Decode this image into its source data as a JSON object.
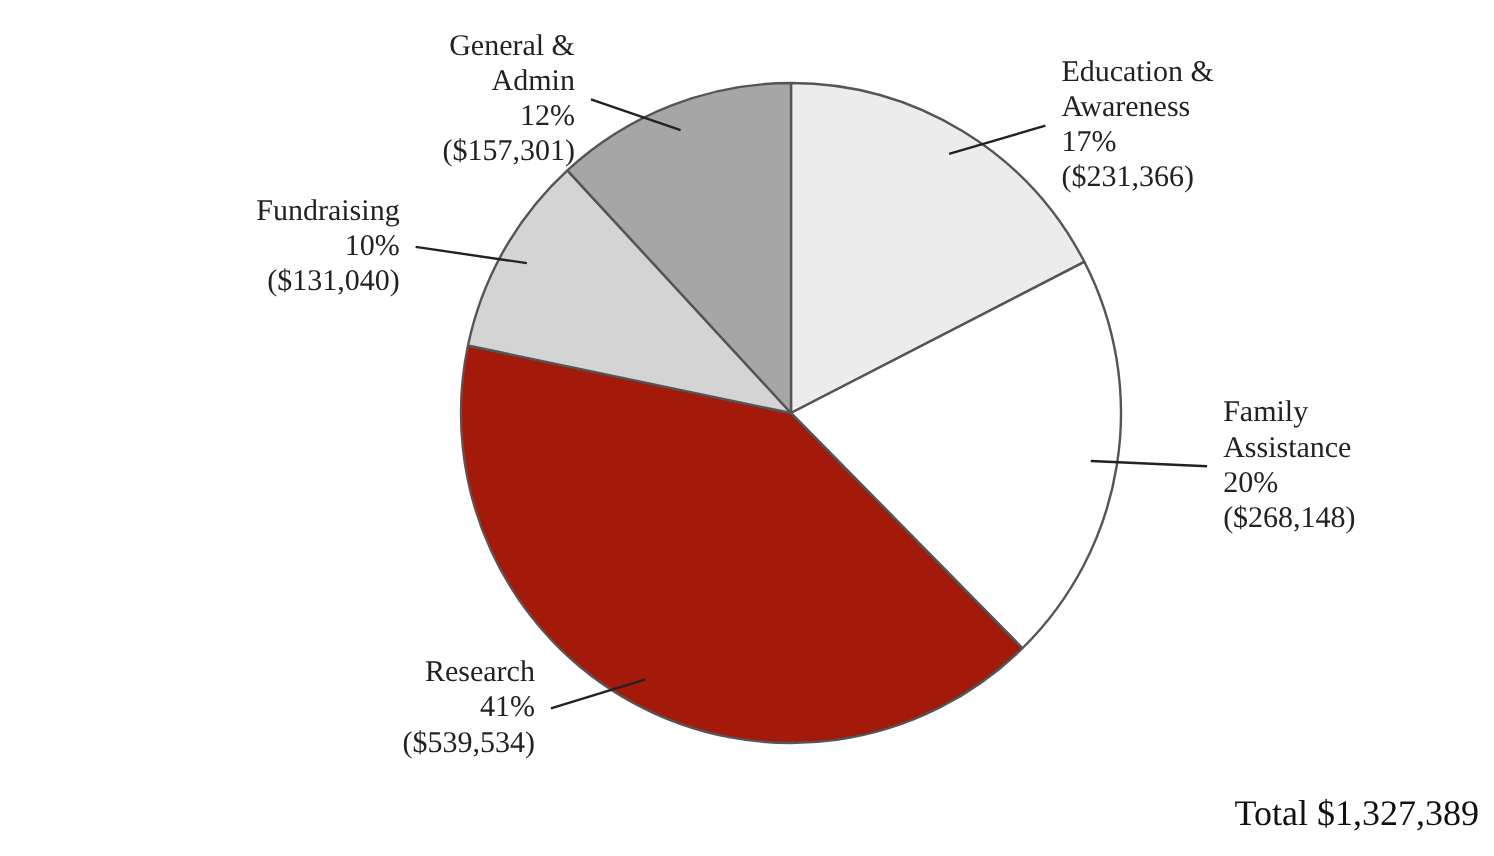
{
  "chart_data": {
    "type": "pie",
    "categories": [
      "Education &\nAwareness",
      "Family\nAssistance",
      "Research",
      "Fundraising",
      "General &\nAdmin"
    ],
    "values": [
      231366,
      268148,
      539534,
      131040,
      157301
    ],
    "value_labels": [
      "17%\n($231,366)",
      "20%\n($268,148)",
      "41%\n($539,534)",
      "10%\n($131,040)",
      "12%\n($157,301)"
    ],
    "colors": [
      "#ececec",
      "#ffffff",
      "#a3190a",
      "#d4d4d4",
      "#a6a6a6"
    ],
    "annotations": [
      "Total $1,327,389"
    ]
  }
}
